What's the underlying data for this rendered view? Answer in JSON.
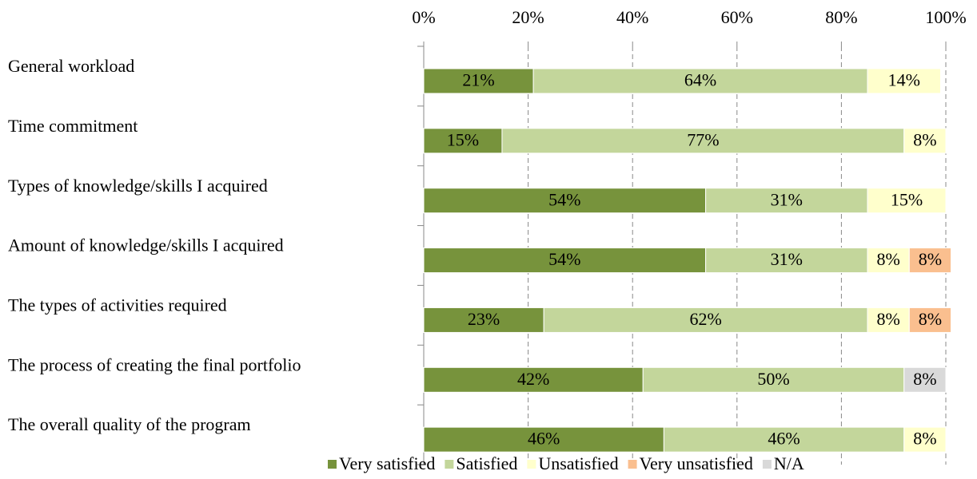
{
  "chart_data": {
    "type": "stacked_bar_horizontal",
    "categories": [
      "General workload",
      "Time commitment",
      "Types of knowledge/skills I acquired",
      "Amount of knowledge/skills I acquired",
      "The types of activities required",
      "The process of creating the final portfolio",
      "The overall quality of the program"
    ],
    "series": [
      {
        "name": "Very satisfied",
        "color": "#77933c",
        "values": [
          21,
          15,
          54,
          54,
          23,
          42,
          46
        ],
        "value_labels": [
          "21%",
          "15%",
          "54%",
          "54%",
          "23%",
          "42%",
          "46%"
        ]
      },
      {
        "name": "Satisfied",
        "color": "#c3d69b",
        "values": [
          64,
          77,
          31,
          31,
          62,
          50,
          46
        ],
        "value_labels": [
          "64%",
          "77%",
          "31%",
          "31%",
          "62%",
          "50%",
          "46%"
        ]
      },
      {
        "name": "Unsatisfied",
        "color": "#ffffcc",
        "values": [
          14,
          8,
          15,
          8,
          8,
          null,
          8
        ],
        "value_labels": [
          "14%",
          "8%",
          "15%",
          "8%",
          "8%",
          null,
          "8%"
        ]
      },
      {
        "name": "Very unsatisfied",
        "color": "#fabf8f",
        "values": [
          null,
          null,
          null,
          8,
          8,
          null,
          null
        ],
        "value_labels": [
          null,
          null,
          null,
          "8%",
          "8%",
          null,
          null
        ]
      },
      {
        "name": "N/A",
        "color": "#d9d9d9",
        "values": [
          null,
          null,
          null,
          null,
          null,
          8,
          null
        ],
        "value_labels": [
          null,
          null,
          null,
          null,
          null,
          "8%",
          null
        ]
      }
    ],
    "xlim": [
      0,
      100
    ],
    "xticks": [
      {
        "value": 0,
        "label": "0%"
      },
      {
        "value": 20,
        "label": "20%"
      },
      {
        "value": 40,
        "label": "40%"
      },
      {
        "value": 60,
        "label": "60%"
      },
      {
        "value": 80,
        "label": "80%"
      },
      {
        "value": 100,
        "label": "100%"
      }
    ],
    "grid": true,
    "legend": "bottom"
  }
}
